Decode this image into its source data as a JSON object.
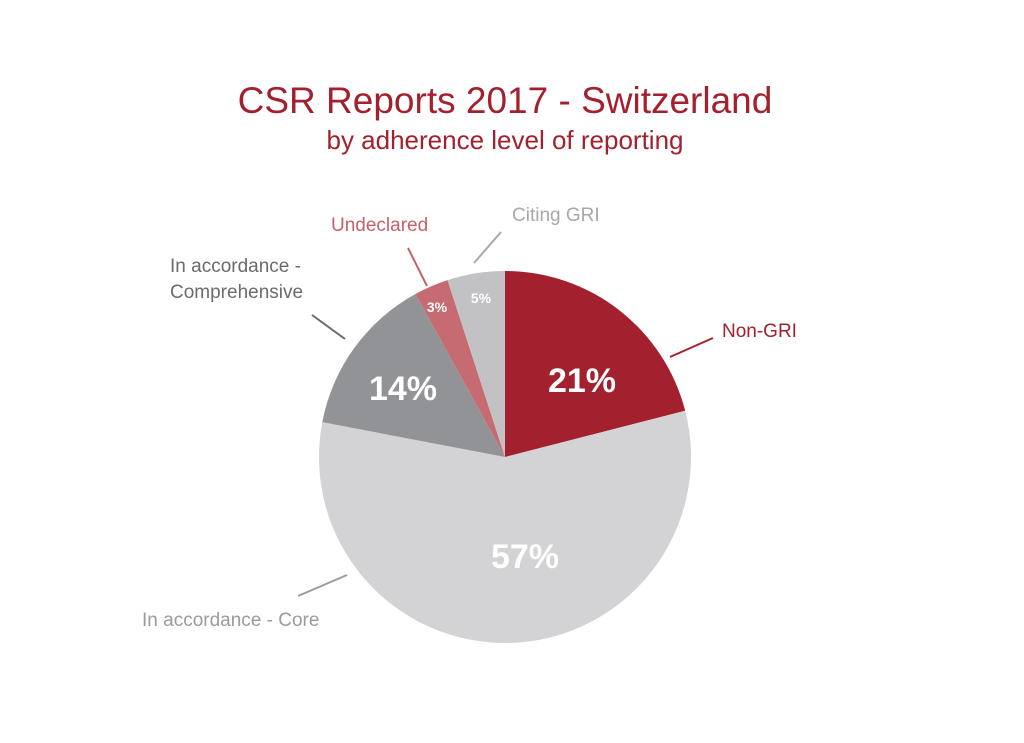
{
  "chart_data": {
    "type": "pie",
    "title": "CSR Reports 2017 - Switzerland",
    "subtitle": "by adherence level of reporting",
    "start_angle_deg": 0,
    "direction": "clockwise",
    "slices": [
      {
        "name": "Non-GRI",
        "value": 21,
        "label": "21%",
        "color": "#a3212e",
        "label_color": "#a3212e"
      },
      {
        "name": "In accordance - Core",
        "value": 57,
        "label": "57%",
        "color": "#d3d3d5",
        "label_color": "#9b9b9b"
      },
      {
        "name": "In accordance - Comprehensive",
        "value": 14,
        "label": "14%",
        "color": "#929396",
        "label_color": "#6b6b6e",
        "label_lines": [
          "In accordance -",
          "Comprehensive"
        ]
      },
      {
        "name": "Undeclared",
        "value": 3,
        "label": "3%",
        "color": "#c76b73",
        "label_color": "#c6616a"
      },
      {
        "name": "Citing GRI",
        "value": 5,
        "label": "5%",
        "color": "#c2c2c4",
        "label_color": "#a8a8aa"
      }
    ]
  }
}
